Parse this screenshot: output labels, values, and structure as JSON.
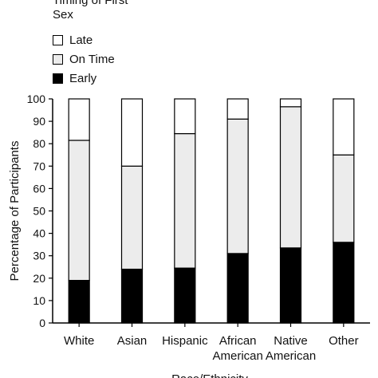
{
  "chart_data": {
    "type": "bar",
    "stacked": true,
    "legend_title": "Timing of First Sex",
    "legend_position": "top-left",
    "categories": [
      [
        "White"
      ],
      [
        "Asian"
      ],
      [
        "Hispanic"
      ],
      [
        "African",
        "American"
      ],
      [
        "Native",
        "American"
      ],
      [
        "Other"
      ]
    ],
    "series": [
      {
        "name": "Early",
        "color": "#000000",
        "values": [
          19,
          24,
          24.5,
          31,
          33.5,
          36
        ]
      },
      {
        "name": "On Time",
        "color": "#ececec",
        "values": [
          62.5,
          46,
          60,
          60,
          63,
          39
        ]
      },
      {
        "name": "Late",
        "color": "#ffffff",
        "values": [
          18.5,
          30,
          15.5,
          9,
          3.5,
          25
        ]
      }
    ],
    "legend_order": [
      "Late",
      "On Time",
      "Early"
    ],
    "ylabel": "Percentage of Participants",
    "xlabel": "Race/Ethnicity",
    "ylim": [
      0,
      100
    ],
    "yticks": [
      0,
      10,
      20,
      30,
      40,
      50,
      60,
      70,
      80,
      90,
      100
    ],
    "grid": false
  }
}
